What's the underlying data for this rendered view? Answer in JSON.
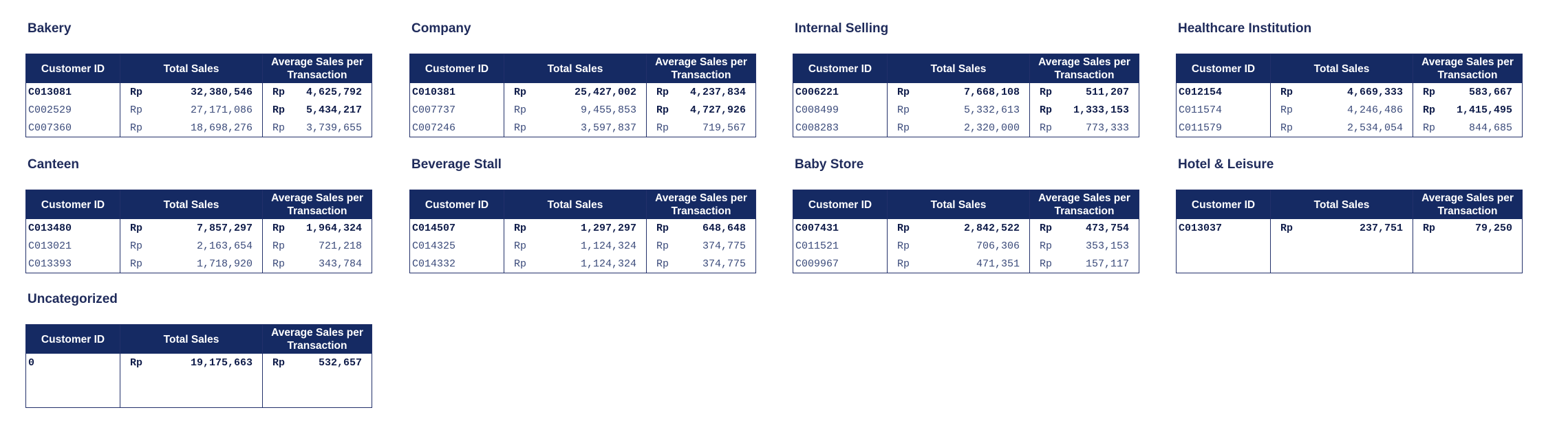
{
  "headers": {
    "customer_id": "Customer ID",
    "total_sales": "Total Sales",
    "avg_sales": "Average Sales per Transaction",
    "currency": "Rp"
  },
  "panels": [
    {
      "title": "Bakery",
      "rows": [
        {
          "id": "C013081",
          "total": "32,380,546",
          "avg": "4,625,792",
          "avg_bold": false
        },
        {
          "id": "C002529",
          "total": "27,171,086",
          "avg": "5,434,217",
          "avg_bold": true
        },
        {
          "id": "C007360",
          "total": "18,698,276",
          "avg": "3,739,655",
          "avg_bold": false
        }
      ]
    },
    {
      "title": "Company",
      "rows": [
        {
          "id": "C010381",
          "total": "25,427,002",
          "avg": "4,237,834",
          "avg_bold": false
        },
        {
          "id": "C007737",
          "total": "9,455,853",
          "avg": "4,727,926",
          "avg_bold": true
        },
        {
          "id": "C007246",
          "total": "3,597,837",
          "avg": "719,567",
          "avg_bold": false
        }
      ]
    },
    {
      "title": "Internal Selling",
      "rows": [
        {
          "id": "C006221",
          "total": "7,668,108",
          "avg": "511,207",
          "avg_bold": false
        },
        {
          "id": "C008499",
          "total": "5,332,613",
          "avg": "1,333,153",
          "avg_bold": true
        },
        {
          "id": "C008283",
          "total": "2,320,000",
          "avg": "773,333",
          "avg_bold": false
        }
      ]
    },
    {
      "title": "Healthcare Institution",
      "rows": [
        {
          "id": "C012154",
          "total": "4,669,333",
          "avg": "583,667",
          "avg_bold": false
        },
        {
          "id": "C011574",
          "total": "4,246,486",
          "avg": "1,415,495",
          "avg_bold": true
        },
        {
          "id": "C011579",
          "total": "2,534,054",
          "avg": "844,685",
          "avg_bold": false
        }
      ]
    },
    {
      "title": "Canteen",
      "rows": [
        {
          "id": "C013480",
          "total": "7,857,297",
          "avg": "1,964,324",
          "avg_bold": true
        },
        {
          "id": "C013021",
          "total": "2,163,654",
          "avg": "721,218",
          "avg_bold": false
        },
        {
          "id": "C013393",
          "total": "1,718,920",
          "avg": "343,784",
          "avg_bold": false
        }
      ]
    },
    {
      "title": "Beverage Stall",
      "rows": [
        {
          "id": "C014507",
          "total": "1,297,297",
          "avg": "648,648",
          "avg_bold": true
        },
        {
          "id": "C014325",
          "total": "1,124,324",
          "avg": "374,775",
          "avg_bold": false
        },
        {
          "id": "C014332",
          "total": "1,124,324",
          "avg": "374,775",
          "avg_bold": false
        }
      ]
    },
    {
      "title": "Baby Store",
      "rows": [
        {
          "id": "C007431",
          "total": "2,842,522",
          "avg": "473,754",
          "avg_bold": true
        },
        {
          "id": "C011521",
          "total": "706,306",
          "avg": "353,153",
          "avg_bold": false
        },
        {
          "id": "C009967",
          "total": "471,351",
          "avg": "157,117",
          "avg_bold": false
        }
      ]
    },
    {
      "title": "Hotel & Leisure",
      "rows": [
        {
          "id": "C013037",
          "total": "237,751",
          "avg": "79,250",
          "avg_bold": true
        }
      ]
    },
    {
      "title": "Uncategorized",
      "rows": [
        {
          "id": "0",
          "total": "19,175,663",
          "avg": "532,657",
          "avg_bold": true
        }
      ]
    }
  ]
}
